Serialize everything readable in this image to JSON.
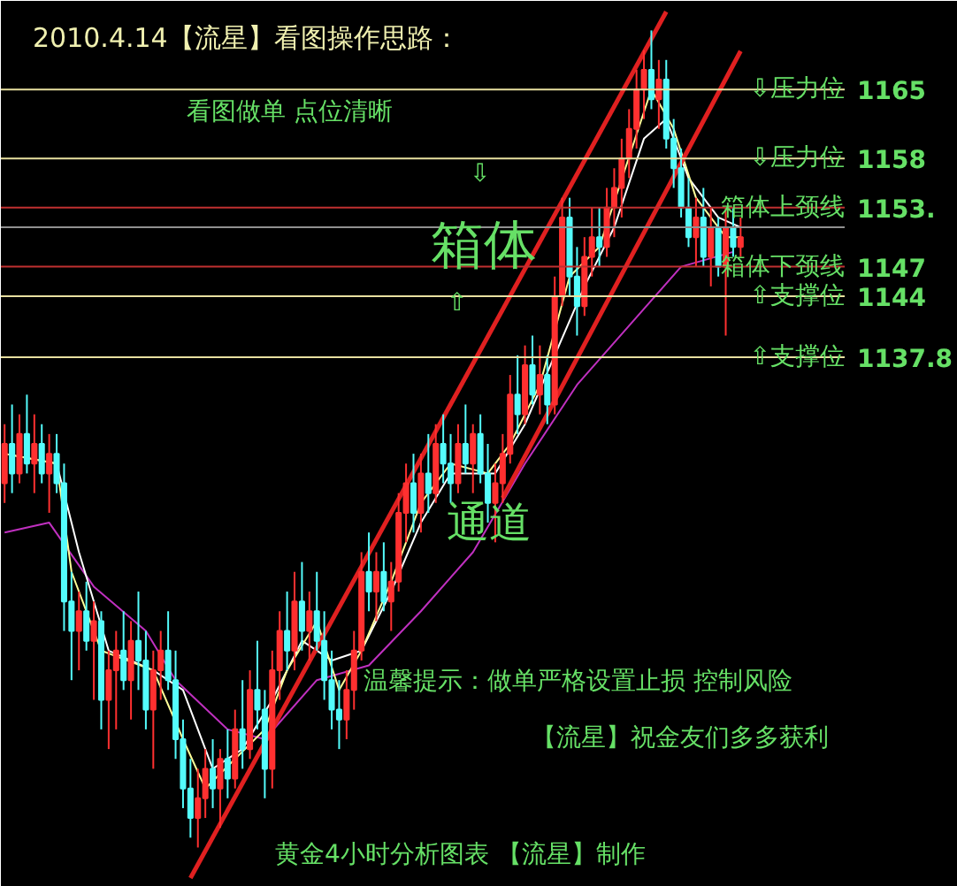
{
  "chart_data": {
    "type": "candlestick",
    "title": "2010.4.14【流星】看图操作思路：",
    "categories": [
      null,
      null,
      null,
      null,
      null,
      null,
      null,
      null,
      null,
      null,
      null,
      null,
      null,
      null,
      null,
      null,
      null,
      null,
      null,
      null,
      null,
      null,
      null,
      null,
      null,
      null,
      null,
      null,
      null,
      null,
      null,
      null,
      null,
      null,
      null,
      null,
      null,
      null,
      null,
      null,
      null,
      null,
      null,
      null,
      null,
      null,
      null,
      null,
      null,
      null,
      null,
      null,
      null,
      null,
      null,
      null,
      null,
      null,
      null,
      null,
      null,
      null,
      null,
      null,
      null,
      null,
      null,
      null,
      null,
      null,
      null,
      null,
      null,
      null,
      null,
      null,
      null,
      null,
      null,
      null,
      null,
      null,
      null,
      null,
      null,
      null,
      null,
      null,
      null,
      null,
      null,
      null,
      null,
      null,
      null,
      null,
      null,
      null,
      null,
      null
    ],
    "ylim": [
      1084,
      1174
    ],
    "yticks": [
      1165,
      1158,
      {
        "value": 1153,
        "label": "1153."
      },
      1147,
      1144,
      1137.8
    ],
    "tick_labels": "y",
    "grid": false,
    "ohlc": [
      [
        1125,
        1131,
        1123,
        1129
      ],
      [
        1129,
        1133,
        1124,
        1126
      ],
      [
        1126,
        1132,
        1125,
        1130
      ],
      [
        1130,
        1134,
        1126,
        1127
      ],
      [
        1127,
        1132,
        1124,
        1129
      ],
      [
        1129,
        1131,
        1125,
        1126
      ],
      [
        1126,
        1130,
        1122,
        1128
      ],
      [
        1128,
        1130,
        1124,
        1125
      ],
      [
        1125,
        1127,
        1110,
        1113
      ],
      [
        1113,
        1116,
        1105,
        1110
      ],
      [
        1110,
        1114,
        1106,
        1112
      ],
      [
        1112,
        1115,
        1108,
        1109
      ],
      [
        1109,
        1113,
        1103,
        1111
      ],
      [
        1111,
        1112,
        1100,
        1103
      ],
      [
        1103,
        1108,
        1098,
        1106
      ],
      [
        1106,
        1110,
        1100,
        1108
      ],
      [
        1108,
        1112,
        1104,
        1105
      ],
      [
        1105,
        1111,
        1101,
        1109
      ],
      [
        1109,
        1114,
        1104,
        1107
      ],
      [
        1107,
        1110,
        1100,
        1102
      ],
      [
        1102,
        1108,
        1096,
        1106
      ],
      [
        1106,
        1110,
        1103,
        1108
      ],
      [
        1108,
        1112,
        1104,
        1105
      ],
      [
        1105,
        1108,
        1097,
        1099
      ],
      [
        1099,
        1101,
        1092,
        1094
      ],
      [
        1094,
        1097,
        1089,
        1091
      ],
      [
        1091,
        1096,
        1088,
        1093
      ],
      [
        1093,
        1098,
        1091,
        1096
      ],
      [
        1096,
        1099,
        1092,
        1094
      ],
      [
        1094,
        1098,
        1090,
        1097
      ],
      [
        1097,
        1100,
        1093,
        1095
      ],
      [
        1095,
        1102,
        1094,
        1100
      ],
      [
        1100,
        1105,
        1096,
        1098
      ],
      [
        1098,
        1106,
        1097,
        1104
      ],
      [
        1104,
        1109,
        1100,
        1102
      ],
      [
        1102,
        1104,
        1093,
        1096
      ],
      [
        1096,
        1108,
        1094,
        1106
      ],
      [
        1106,
        1112,
        1103,
        1110
      ],
      [
        1110,
        1114,
        1106,
        1108
      ],
      [
        1108,
        1116,
        1106,
        1113
      ],
      [
        1113,
        1117,
        1108,
        1110
      ],
      [
        1110,
        1114,
        1107,
        1112
      ],
      [
        1112,
        1116,
        1108,
        1109
      ],
      [
        1109,
        1112,
        1103,
        1105
      ],
      [
        1105,
        1108,
        1100,
        1102
      ],
      [
        1102,
        1105,
        1098,
        1101
      ],
      [
        1101,
        1106,
        1099,
        1104
      ],
      [
        1104,
        1110,
        1102,
        1108
      ],
      [
        1108,
        1118,
        1107,
        1116
      ],
      [
        1116,
        1120,
        1112,
        1114
      ],
      [
        1114,
        1118,
        1111,
        1116
      ],
      [
        1116,
        1119,
        1112,
        1113
      ],
      [
        1113,
        1117,
        1110,
        1115
      ],
      [
        1115,
        1124,
        1114,
        1122
      ],
      [
        1122,
        1127,
        1119,
        1125
      ],
      [
        1125,
        1128,
        1120,
        1122
      ],
      [
        1122,
        1128,
        1120,
        1126
      ],
      [
        1126,
        1130,
        1122,
        1124
      ],
      [
        1124,
        1131,
        1123,
        1129
      ],
      [
        1129,
        1132,
        1125,
        1127
      ],
      [
        1127,
        1130,
        1123,
        1125
      ],
      [
        1125,
        1131,
        1124,
        1129
      ],
      [
        1129,
        1133,
        1126,
        1127
      ],
      [
        1127,
        1131,
        1124,
        1130
      ],
      [
        1130,
        1132,
        1125,
        1126
      ],
      [
        1126,
        1129,
        1121,
        1123
      ],
      [
        1123,
        1127,
        1119,
        1125
      ],
      [
        1125,
        1130,
        1123,
        1128
      ],
      [
        1128,
        1136,
        1127,
        1134
      ],
      [
        1134,
        1138,
        1130,
        1132
      ],
      [
        1132,
        1139,
        1131,
        1137
      ],
      [
        1137,
        1140,
        1133,
        1134
      ],
      [
        1134,
        1139,
        1132,
        1136
      ],
      [
        1136,
        1138,
        1131,
        1133
      ],
      [
        1133,
        1146,
        1132,
        1144
      ],
      [
        1144,
        1154,
        1143,
        1152
      ],
      [
        1152,
        1154,
        1144,
        1146
      ],
      [
        1146,
        1149,
        1140,
        1143
      ],
      [
        1143,
        1150,
        1142,
        1148
      ],
      [
        1148,
        1153,
        1146,
        1150
      ],
      [
        1150,
        1153,
        1147,
        1149
      ],
      [
        1149,
        1155,
        1148,
        1153
      ],
      [
        1153,
        1157,
        1150,
        1155
      ],
      [
        1155,
        1160,
        1152,
        1158
      ],
      [
        1158,
        1163,
        1156,
        1161
      ],
      [
        1161,
        1167,
        1159,
        1165
      ],
      [
        1165,
        1169,
        1162,
        1167
      ],
      [
        1167,
        1171,
        1163,
        1164
      ],
      [
        1164,
        1168,
        1161,
        1166
      ],
      [
        1166,
        1168,
        1159,
        1160
      ],
      [
        1160,
        1162,
        1155,
        1157
      ],
      [
        1157,
        1159,
        1152,
        1153
      ],
      [
        1153,
        1156,
        1149,
        1150
      ],
      [
        1150,
        1154,
        1147,
        1152
      ],
      [
        1152,
        1155,
        1147,
        1148
      ],
      [
        1148,
        1153,
        1145,
        1151
      ],
      [
        1151,
        1152,
        1146,
        1147
      ],
      [
        1147,
        1153,
        1140,
        1151
      ],
      [
        1151,
        1153,
        1148,
        1149
      ],
      [
        1149,
        1152,
        1148,
        1150
      ]
    ],
    "colors": [
      "#ff3030",
      "#54fcfc",
      "#ff3030",
      "#54fcfc",
      "#ff3030",
      "#54fcfc",
      "#ff3030",
      "#54fcfc",
      "#54fcfc",
      "#54fcfc",
      "#ff3030",
      "#54fcfc",
      "#ff3030",
      "#54fcfc",
      "#ff3030",
      "#ff3030",
      "#54fcfc",
      "#ff3030",
      "#54fcfc",
      "#54fcfc",
      "#ff3030",
      "#ff3030",
      "#54fcfc",
      "#54fcfc",
      "#54fcfc",
      "#54fcfc",
      "#ff3030",
      "#ff3030",
      "#54fcfc",
      "#ff3030",
      "#54fcfc",
      "#ff3030",
      "#54fcfc",
      "#ff3030",
      "#54fcfc",
      "#54fcfc",
      "#ff3030",
      "#ff3030",
      "#54fcfc",
      "#ff3030",
      "#54fcfc",
      "#ff3030",
      "#54fcfc",
      "#54fcfc",
      "#54fcfc",
      "#54fcfc",
      "#ff3030",
      "#ff3030",
      "#ff3030",
      "#54fcfc",
      "#ff3030",
      "#54fcfc",
      "#ff3030",
      "#ff3030",
      "#ff3030",
      "#54fcfc",
      "#ff3030",
      "#54fcfc",
      "#ff3030",
      "#54fcfc",
      "#54fcfc",
      "#ff3030",
      "#54fcfc",
      "#ff3030",
      "#54fcfc",
      "#54fcfc",
      "#ff3030",
      "#ff3030",
      "#ff3030",
      "#54fcfc",
      "#ff3030",
      "#54fcfc",
      "#ff3030",
      "#54fcfc",
      "#ff3030",
      "#ff3030",
      "#54fcfc",
      "#54fcfc",
      "#ff3030",
      "#ff3030",
      "#54fcfc",
      "#ff3030",
      "#ff3030",
      "#ff3030",
      "#ff3030",
      "#ff3030",
      "#ff3030",
      "#54fcfc",
      "#ff3030",
      "#54fcfc",
      "#54fcfc",
      "#54fcfc",
      "#54fcfc",
      "#ff3030",
      "#54fcfc",
      "#ff3030",
      "#54fcfc",
      "#ff3030",
      "#54fcfc",
      "#ff3030"
    ],
    "series": [
      {
        "type": "line",
        "color": "#c030c0",
        "values": [
          1120,
          null,
          null,
          null,
          null,
          null,
          1121,
          null,
          null,
          null,
          null,
          null,
          1114.5,
          null,
          null,
          null,
          null,
          null,
          null,
          1110,
          null,
          null,
          null,
          1105,
          null,
          null,
          null,
          null,
          null,
          null,
          1100,
          null,
          null,
          null,
          null,
          1099,
          null,
          null,
          null,
          null,
          null,
          null,
          1105,
          null,
          null,
          null,
          null,
          null,
          null,
          1106.5,
          null,
          null,
          null,
          null,
          null,
          null,
          1112,
          null,
          null,
          null,
          null,
          null,
          null,
          1118,
          null,
          null,
          null,
          null,
          null,
          null,
          1127,
          null,
          null,
          null,
          null,
          null,
          null,
          1135,
          null,
          null,
          null,
          null,
          null,
          null,
          1141,
          null,
          null,
          null,
          null,
          null,
          null,
          1147,
          null,
          null,
          null,
          null,
          null,
          null,
          1148.5,
          null
        ]
      },
      {
        "type": "line",
        "color": "#ffffff",
        "values": [
          1128,
          null,
          null,
          null,
          null,
          null,
          null,
          1127,
          null,
          null,
          1118,
          null,
          null,
          null,
          1108,
          null,
          null,
          null,
          null,
          null,
          1106,
          null,
          null,
          null,
          1104,
          null,
          null,
          null,
          1096,
          null,
          null,
          null,
          1098,
          null,
          null,
          null,
          1103,
          null,
          null,
          null,
          1109,
          null,
          null,
          null,
          1107,
          null,
          null,
          null,
          1108,
          null,
          null,
          null,
          1114,
          null,
          null,
          null,
          1121,
          null,
          null,
          null,
          1126,
          null,
          null,
          null,
          null,
          null,
          1126,
          null,
          null,
          null,
          1131,
          null,
          null,
          null,
          null,
          null,
          null,
          null,
          1145,
          null,
          null,
          null,
          1151,
          null,
          null,
          null,
          1160,
          null,
          null,
          1162,
          null,
          null,
          1156,
          null,
          null,
          null,
          1152,
          null,
          null,
          1151
        ]
      },
      {
        "type": "line",
        "color": "#ffff99",
        "values": [
          1128,
          null,
          null,
          null,
          null,
          null,
          null,
          1127,
          null,
          1116,
          null,
          null,
          null,
          1108,
          null,
          null,
          null,
          null,
          null,
          null,
          1106,
          null,
          null,
          null,
          1099,
          null,
          null,
          1094,
          null,
          null,
          null,
          1097,
          null,
          null,
          null,
          1100,
          null,
          null,
          1106,
          null,
          null,
          null,
          1111,
          null,
          null,
          1104,
          null,
          null,
          1108,
          null,
          null,
          null,
          1115,
          null,
          null,
          null,
          1123,
          null,
          null,
          null,
          1127,
          null,
          null,
          null,
          null,
          1126,
          null,
          null,
          1129,
          null,
          null,
          null,
          1135,
          null,
          null,
          null,
          1146,
          null,
          null,
          null,
          1149,
          null,
          null,
          null,
          null,
          null,
          null,
          1165,
          null,
          null,
          1161,
          null,
          null,
          1154,
          null,
          null,
          null,
          1150,
          null,
          1150
        ]
      },
      {
        "type": "line",
        "color": "#e02020",
        "values": [
          null,
          null,
          null,
          null,
          null,
          null,
          null,
          null,
          null,
          null,
          null,
          null,
          null,
          null,
          null,
          null,
          null,
          null,
          null,
          null,
          null,
          null,
          null,
          null,
          null,
          1084.9,
          null,
          null,
          null,
          null,
          null,
          null,
          null,
          null,
          null,
          null,
          null,
          null,
          null,
          null,
          null,
          null,
          null,
          null,
          null,
          null,
          null,
          null,
          null,
          null,
          null,
          null,
          null,
          null,
          null,
          null,
          null,
          null,
          null,
          null,
          null,
          null,
          null,
          null,
          null,
          null,
          null,
          null,
          null,
          null,
          null,
          null,
          null,
          null,
          null,
          null,
          null,
          null,
          null,
          null,
          null,
          null,
          null,
          null,
          null,
          null,
          null,
          null,
          null,
          1172.9,
          null,
          null,
          null,
          null,
          null,
          null,
          null,
          null,
          null,
          null
        ]
      },
      {
        "type": "line",
        "color": "#e02020",
        "values": [
          null,
          null,
          null,
          null,
          null,
          null,
          null,
          null,
          null,
          null,
          null,
          null,
          null,
          null,
          null,
          null,
          null,
          null,
          null,
          null,
          null,
          null,
          null,
          null,
          null,
          null,
          null,
          null,
          null,
          null,
          null,
          null,
          null,
          null,
          null,
          null,
          null,
          null,
          null,
          null,
          null,
          null,
          null,
          null,
          null,
          null,
          null,
          null,
          null,
          null,
          null,
          null,
          null,
          null,
          null,
          null,
          null,
          null,
          null,
          null,
          null,
          null,
          null,
          null,
          null,
          null,
          null,
          1123.5,
          null,
          null,
          null,
          null,
          null,
          null,
          null,
          null,
          null,
          null,
          null,
          null,
          null,
          null,
          null,
          null,
          null,
          null,
          null,
          null,
          null,
          null,
          null,
          null,
          null,
          null,
          null,
          null,
          null,
          null,
          null,
          1168.9
        ]
      }
    ],
    "ref_lines": [
      {
        "axis": "y",
        "value": 1165,
        "color": "#e8e0a0"
      },
      {
        "axis": "y",
        "value": 1158,
        "color": "#e8e0a0"
      },
      {
        "axis": "y",
        "value": 1153,
        "color": "#c03030"
      },
      {
        "axis": "y",
        "value": 1151,
        "color": "#909090"
      },
      {
        "axis": "y",
        "value": 1147,
        "color": "#c03030"
      },
      {
        "axis": "y",
        "value": 1144,
        "color": "#e8e0a0"
      },
      {
        "axis": "y",
        "value": 1137.8,
        "color": "#e8e0a0"
      }
    ],
    "annotations": [
      "看图做单  点位清晰",
      "⇩",
      "箱体",
      "⇧",
      "通道",
      "温馨提示：做单严格设置止损 控制风险",
      "【流星】祝金友们多多获利",
      "黄金4小时分析图表  【流星】制作",
      {
        "text": "⇩压力位",
        "y": 1165
      },
      {
        "text": "⇩压力位",
        "y": 1158
      },
      {
        "text": "箱体上颈线",
        "y": 1153
      },
      {
        "text": "箱体下颈线",
        "y": 1147
      },
      {
        "text": "⇧支撑位",
        "y": 1144
      },
      {
        "text": "⇧支撑位",
        "y": 1137.8
      }
    ]
  }
}
